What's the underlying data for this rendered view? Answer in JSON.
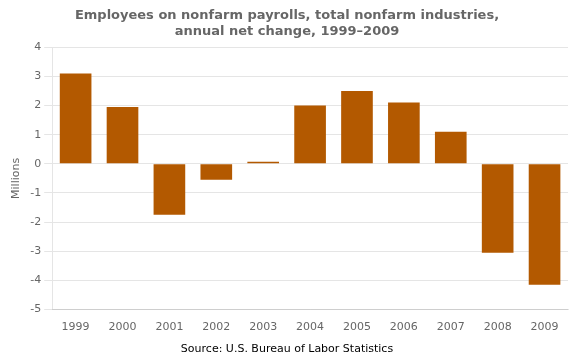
{
  "chart_data": {
    "type": "bar",
    "title": [
      "Employees on nonfarm payrolls, total nonfarm industries,",
      "annual net change, 1999–2009"
    ],
    "ylabel": "Millions",
    "annotation": "Source: U.S. Bureau of Labor Statistics",
    "categories": [
      "1999",
      "2000",
      "2001",
      "2002",
      "2003",
      "2004",
      "2005",
      "2006",
      "2007",
      "2008",
      "2009"
    ],
    "values": [
      3.1,
      1.95,
      -1.75,
      -0.55,
      0.07,
      2.0,
      2.5,
      2.1,
      1.1,
      -3.05,
      -4.15
    ],
    "color": "#b35900",
    "ylim": [
      -5,
      4
    ],
    "yticks": [
      -5,
      -4,
      -3,
      -2,
      -1,
      0,
      1,
      2,
      3,
      4
    ],
    "grid": true
  }
}
